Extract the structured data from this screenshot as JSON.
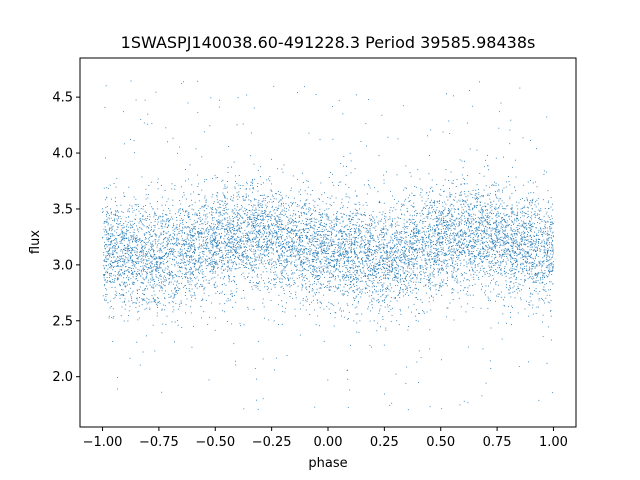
{
  "chart_data": {
    "type": "scatter",
    "title": "1SWASPJ140038.60-491228.3 Period 39585.98438s",
    "xlabel": "phase",
    "ylabel": "flux",
    "xlim": [
      -1.1,
      1.1
    ],
    "ylim": [
      1.55,
      4.85
    ],
    "xticks": [
      -1.0,
      -0.75,
      -0.5,
      -0.25,
      0.0,
      0.25,
      0.5,
      0.75,
      1.0
    ],
    "xtick_labels": [
      "−1.00",
      "−0.75",
      "−0.50",
      "−0.25",
      "0.00",
      "0.25",
      "0.50",
      "0.75",
      "1.00"
    ],
    "yticks": [
      2.0,
      2.5,
      3.0,
      3.5,
      4.0,
      4.5
    ],
    "ytick_labels": [
      "2.0",
      "2.5",
      "3.0",
      "3.5",
      "4.0",
      "4.5"
    ],
    "grid": false,
    "legend": "none",
    "marker_color": "#1f77b4",
    "series": [
      {
        "points_phase_flux_profile": [
          [
            -1.0,
            3.13
          ],
          [
            -0.9,
            3.1
          ],
          [
            -0.8,
            3.07
          ],
          [
            -0.7,
            3.09
          ],
          [
            -0.6,
            3.16
          ],
          [
            -0.5,
            3.22
          ],
          [
            -0.4,
            3.25
          ],
          [
            -0.3,
            3.27
          ],
          [
            -0.2,
            3.22
          ],
          [
            -0.1,
            3.16
          ],
          [
            0.0,
            3.13
          ],
          [
            0.1,
            3.1
          ],
          [
            0.2,
            3.07
          ],
          [
            0.3,
            3.09
          ],
          [
            0.4,
            3.16
          ],
          [
            0.5,
            3.22
          ],
          [
            0.6,
            3.25
          ],
          [
            0.7,
            3.27
          ],
          [
            0.8,
            3.22
          ],
          [
            0.9,
            3.16
          ],
          [
            1.0,
            3.13
          ]
        ],
        "point_count": 9000,
        "scatter_sigma": 0.24,
        "outlier_range": [
          1.7,
          4.7
        ]
      }
    ]
  }
}
